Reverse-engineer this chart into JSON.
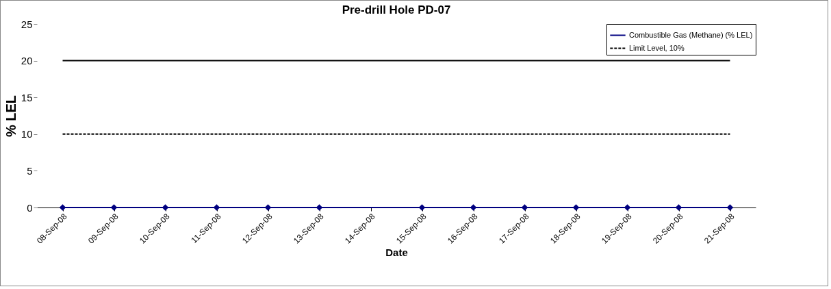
{
  "chart_data": {
    "type": "line",
    "title": "Pre-drill Hole PD-07",
    "xlabel": "Date",
    "ylabel": "% LEL",
    "categories": [
      "08-Sep-08",
      "09-Sep-08",
      "10-Sep-08",
      "11-Sep-08",
      "12-Sep-08",
      "13-Sep-08",
      "14-Sep-08",
      "15-Sep-08",
      "16-Sep-08",
      "17-Sep-08",
      "18-Sep-08",
      "19-Sep-08",
      "20-Sep-08",
      "21-Sep-08"
    ],
    "series": [
      {
        "name": "Combustible Gas (Methane) (% LEL)",
        "color": "#000080",
        "marker": "diamond",
        "line_style": "solid",
        "values": [
          0,
          0,
          0,
          0,
          0,
          0,
          null,
          0,
          0,
          0,
          0,
          0,
          0,
          0
        ]
      },
      {
        "name": "Limit Level, 10%",
        "color": "#000000",
        "marker": "none",
        "line_style": "dashed",
        "values": [
          10,
          10,
          10,
          10,
          10,
          10,
          10,
          10,
          10,
          10,
          10,
          10,
          10,
          10
        ]
      },
      {
        "color": "#000000",
        "marker": "none",
        "line_style": "solid",
        "values": [
          20,
          20,
          20,
          20,
          20,
          20,
          20,
          20,
          20,
          20,
          20,
          20,
          20,
          20
        ]
      }
    ],
    "ylim": [
      0,
      25
    ],
    "yticks": [
      0,
      5,
      10,
      15,
      20,
      25
    ],
    "grid": false,
    "legend": "top right"
  }
}
